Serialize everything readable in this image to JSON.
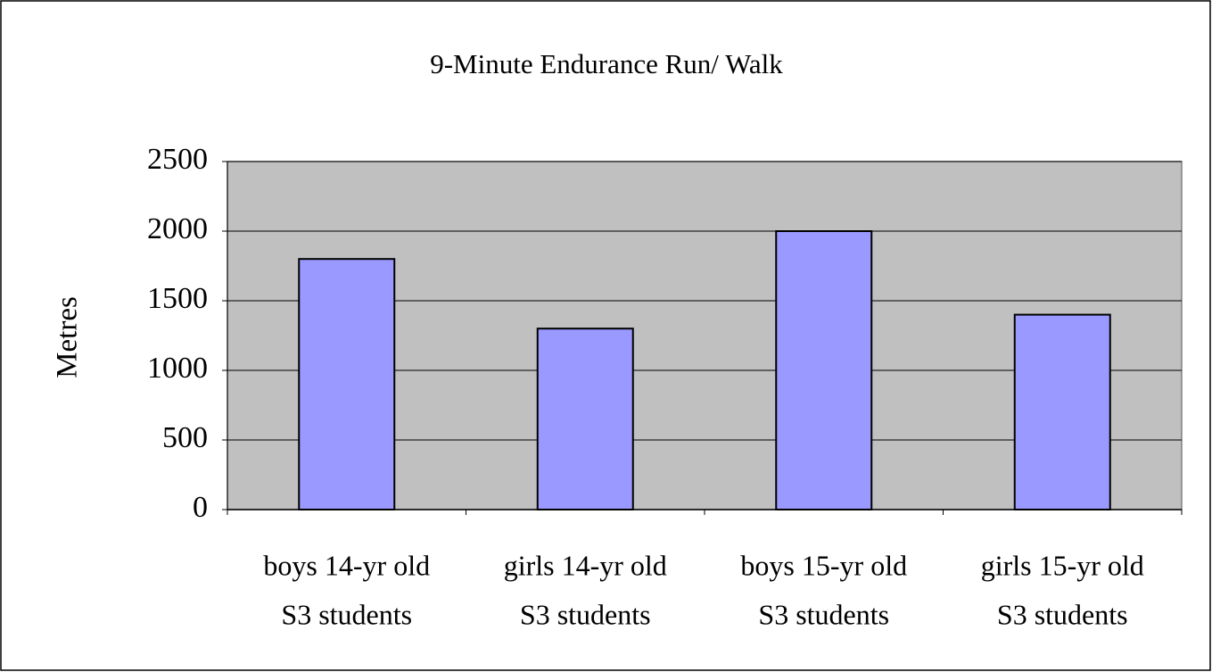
{
  "chart_data": {
    "type": "bar",
    "title": "9-Minute Endurance Run/ Walk",
    "y_label": "Metres",
    "categories": [
      [
        "boys 14-yr old",
        "S3 students"
      ],
      [
        "girls 14-yr old",
        "S3 students"
      ],
      [
        "boys 15-yr old",
        "S3 students"
      ],
      [
        "girls 15-yr old",
        "S3 students"
      ]
    ],
    "values": [
      1800,
      1300,
      2000,
      1400
    ],
    "color": "#9999ff",
    "plot_background": "#c0c0c0",
    "ylim": [
      0,
      2500
    ],
    "yticks": [
      0,
      500,
      1000,
      1500,
      2000,
      2500
    ],
    "grid": true
  }
}
